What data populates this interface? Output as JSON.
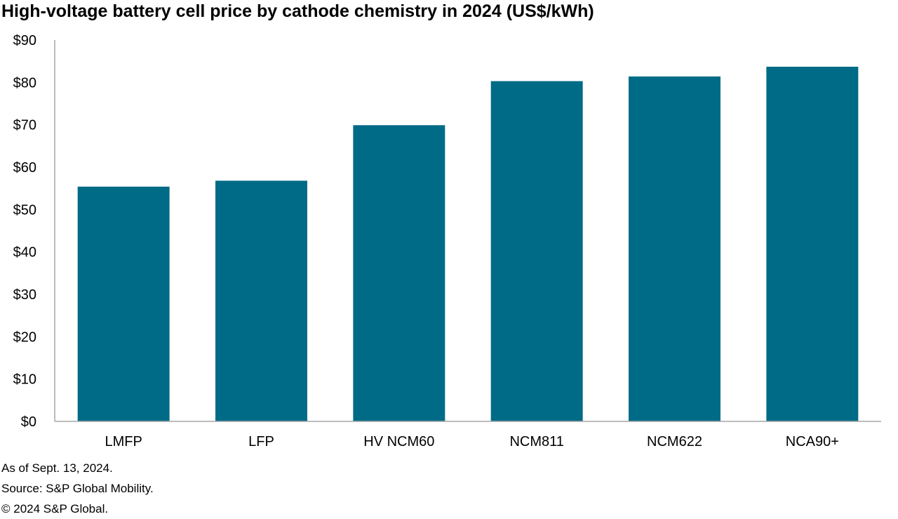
{
  "chart_data": {
    "type": "bar",
    "title": "High-voltage battery cell price by cathode chemistry in 2024 (US$/kWh)",
    "categories": [
      "LMFP",
      "LFP",
      "HV NCM60",
      "NCM811",
      "NCM622",
      "NCA90+"
    ],
    "values": [
      55.4,
      56.8,
      69.9,
      80.3,
      81.4,
      83.7
    ],
    "ylim": [
      0,
      90
    ],
    "yticks": [
      0,
      10,
      20,
      30,
      40,
      50,
      60,
      70,
      80,
      90
    ],
    "ytick_labels": [
      "$0",
      "$10",
      "$20",
      "$30",
      "$40",
      "$50",
      "$60",
      "$70",
      "$80",
      "$90"
    ],
    "bar_color": "#006b86",
    "axis_color": "#a6a6a6",
    "grid": false,
    "legend": "none"
  },
  "notes": {
    "as_of": "As of Sept. 13, 2024.",
    "source": "Source: S&P Global Mobility.",
    "copyright": "© 2024 S&P Global."
  }
}
